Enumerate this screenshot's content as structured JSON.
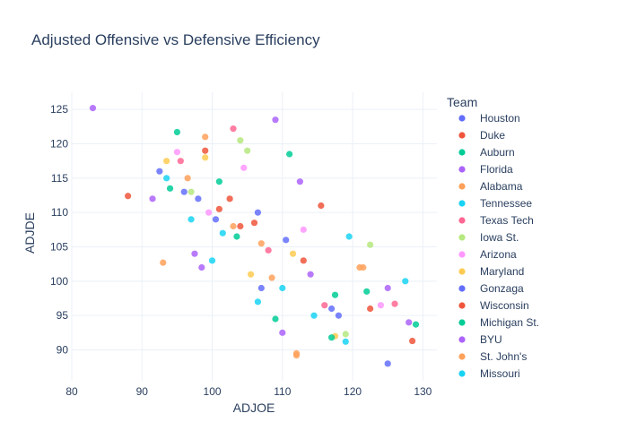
{
  "chart_data": {
    "type": "scatter",
    "title": "Adjusted Offensive vs Defensive Efficiency",
    "xlabel": "ADJOE",
    "ylabel": "ADJDE",
    "xlim": [
      80,
      132
    ],
    "ylim": [
      85.5,
      127.5
    ],
    "xticks": [
      80,
      90,
      100,
      110,
      120,
      130
    ],
    "yticks": [
      90,
      95,
      100,
      105,
      110,
      115,
      120,
      125
    ],
    "grid": true,
    "legend": {
      "title": "Team",
      "position": "right"
    },
    "colors": [
      "#636efa",
      "#EF553B",
      "#00cc96",
      "#ab63fa",
      "#FFA15A",
      "#19d3f3",
      "#FF6692",
      "#B6E880",
      "#FF97FF",
      "#FECB52"
    ],
    "series": [
      {
        "name": "Houston",
        "x": [
          125.0,
          92.5,
          106.5,
          117.0,
          98.0
        ],
        "y": [
          88.0,
          116.0,
          110.0,
          96.0,
          112.0
        ]
      },
      {
        "name": "Duke",
        "x": [
          128.5,
          88.0,
          113.0,
          104.0,
          101.0
        ],
        "y": [
          91.3,
          112.4,
          103.0,
          108.0,
          110.5
        ]
      },
      {
        "name": "Auburn",
        "x": [
          129.0,
          95.0,
          111.0,
          117.5,
          103.5
        ],
        "y": [
          93.7,
          121.7,
          118.5,
          98.0,
          106.5
        ]
      },
      {
        "name": "Florida",
        "x": [
          83.0,
          109.0,
          128.0,
          112.5,
          98.5
        ],
        "y": [
          125.2,
          123.5,
          94.0,
          114.5,
          102.0
        ]
      },
      {
        "name": "Alabama",
        "x": [
          112.0,
          93.0,
          121.5,
          99.0,
          107.0
        ],
        "y": [
          89.2,
          102.7,
          102.0,
          121.0,
          105.5
        ]
      },
      {
        "name": "Tennessee",
        "x": [
          119.0,
          127.5,
          93.5,
          101.5,
          110.0
        ],
        "y": [
          91.2,
          100.0,
          115.0,
          107.0,
          99.0
        ]
      },
      {
        "name": "Texas Tech",
        "x": [
          103.0,
          116.0,
          126.0,
          95.5,
          108.0
        ],
        "y": [
          122.2,
          96.5,
          96.7,
          117.5,
          104.5
        ]
      },
      {
        "name": "Iowa St.",
        "x": [
          104.0,
          105.0,
          122.5,
          119.0,
          97.0
        ],
        "y": [
          120.5,
          119.0,
          105.3,
          92.3,
          113.0
        ]
      },
      {
        "name": "Arizona",
        "x": [
          95.0,
          104.5,
          124.0,
          99.5,
          113.0
        ],
        "y": [
          118.8,
          116.5,
          96.5,
          110.0,
          107.5
        ]
      },
      {
        "name": "Maryland",
        "x": [
          93.5,
          99.0,
          111.5,
          117.5,
          105.5
        ],
        "y": [
          117.5,
          118.0,
          104.0,
          92.0,
          101.0
        ]
      },
      {
        "name": "Gonzaga",
        "x": [
          96.0,
          100.5,
          118.0,
          107.0,
          110.5
        ],
        "y": [
          113.0,
          109.0,
          95.0,
          99.0,
          106.0
        ]
      },
      {
        "name": "Wisconsin",
        "x": [
          99.0,
          102.5,
          115.5,
          122.5,
          106.0
        ],
        "y": [
          119.0,
          112.0,
          111.0,
          96.0,
          108.5
        ]
      },
      {
        "name": "Michigan St.",
        "x": [
          94.0,
          101.0,
          109.0,
          117.0,
          122.0
        ],
        "y": [
          113.5,
          114.5,
          94.5,
          91.8,
          98.5
        ]
      },
      {
        "name": "BYU",
        "x": [
          91.5,
          97.5,
          110.0,
          114.0,
          125.0
        ],
        "y": [
          112.0,
          104.0,
          92.5,
          101.0,
          99.0
        ]
      },
      {
        "name": "St. John's",
        "x": [
          96.5,
          103.0,
          108.5,
          112.0,
          121.0
        ],
        "y": [
          115.0,
          108.0,
          100.5,
          89.5,
          102.0
        ]
      },
      {
        "name": "Missouri",
        "x": [
          97.0,
          100.0,
          106.5,
          114.5,
          119.5
        ],
        "y": [
          109.0,
          103.0,
          97.0,
          95.0,
          106.5
        ]
      }
    ]
  }
}
